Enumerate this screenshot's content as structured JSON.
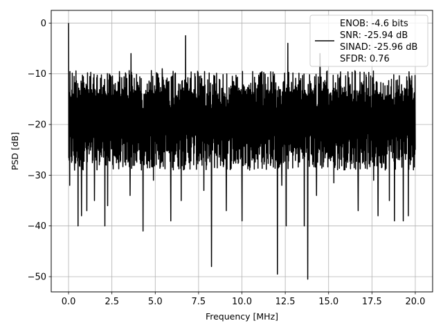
{
  "chart_data": {
    "type": "line",
    "title": "",
    "xlabel": "Frequency [MHz]",
    "ylabel": "PSD [dB]",
    "xlim": [
      -1.0,
      21.0
    ],
    "ylim": [
      -53.0,
      2.5
    ],
    "xticks": [
      0.0,
      2.5,
      5.0,
      7.5,
      10.0,
      12.5,
      15.0,
      17.5,
      20.0
    ],
    "xtick_labels": [
      "0.0",
      "2.5",
      "5.0",
      "7.5",
      "10.0",
      "12.5",
      "15.0",
      "17.5",
      "20.0"
    ],
    "yticks": [
      0,
      -10,
      -20,
      -30,
      -40,
      -50
    ],
    "ytick_labels": [
      "0",
      "−10",
      "−20",
      "−30",
      "−40",
      "−50"
    ],
    "grid": true,
    "legend_position": "top-right",
    "legend_lines": [
      "ENOB: -4.6 bits",
      "SNR: -25.94 dB",
      "SINAD: -25.96 dB",
      "SFDR: 0.76"
    ],
    "colors": {
      "line": "#000000",
      "grid": "#b0b0b0",
      "axes": "#000000",
      "legend_border": "#cccccc"
    },
    "series": [
      {
        "x_range": [
          0.0,
          20.0
        ],
        "n_points": 1500,
        "typical_upper": -8,
        "typical_lower": -25,
        "peak_start": 0,
        "features": [
          {
            "x": 0.0,
            "y": 0.0
          },
          {
            "x": 0.07,
            "y": -32.0
          },
          {
            "x": 0.35,
            "y": -29.0
          },
          {
            "x": 0.55,
            "y": -40.0
          },
          {
            "x": 0.75,
            "y": -38.0
          },
          {
            "x": 1.05,
            "y": -37.0
          },
          {
            "x": 1.5,
            "y": -35.0
          },
          {
            "x": 2.1,
            "y": -40.0
          },
          {
            "x": 2.25,
            "y": -36.0
          },
          {
            "x": 3.55,
            "y": -34.0
          },
          {
            "x": 3.6,
            "y": -6.0
          },
          {
            "x": 4.3,
            "y": -41.0
          },
          {
            "x": 4.9,
            "y": -31.0
          },
          {
            "x": 5.4,
            "y": -9.0
          },
          {
            "x": 5.9,
            "y": -39.0
          },
          {
            "x": 6.5,
            "y": -35.0
          },
          {
            "x": 6.75,
            "y": -2.5
          },
          {
            "x": 7.8,
            "y": -33.0
          },
          {
            "x": 8.25,
            "y": -48.0
          },
          {
            "x": 9.1,
            "y": -37.0
          },
          {
            "x": 10.0,
            "y": -39.0
          },
          {
            "x": 12.05,
            "y": -49.5
          },
          {
            "x": 12.3,
            "y": -32.0
          },
          {
            "x": 12.55,
            "y": -40.0
          },
          {
            "x": 12.65,
            "y": -4.0
          },
          {
            "x": 13.6,
            "y": -40.0
          },
          {
            "x": 13.8,
            "y": -50.5
          },
          {
            "x": 14.3,
            "y": -34.0
          },
          {
            "x": 14.5,
            "y": -6.0
          },
          {
            "x": 15.3,
            "y": -31.5
          },
          {
            "x": 16.7,
            "y": -37.0
          },
          {
            "x": 17.85,
            "y": -38.0
          },
          {
            "x": 17.6,
            "y": -31.0
          },
          {
            "x": 18.5,
            "y": -35.0
          },
          {
            "x": 18.8,
            "y": -39.0
          },
          {
            "x": 19.3,
            "y": -39.0
          },
          {
            "x": 19.6,
            "y": -38.0
          },
          {
            "x": 20.0,
            "y": -25.0
          }
        ]
      }
    ]
  }
}
